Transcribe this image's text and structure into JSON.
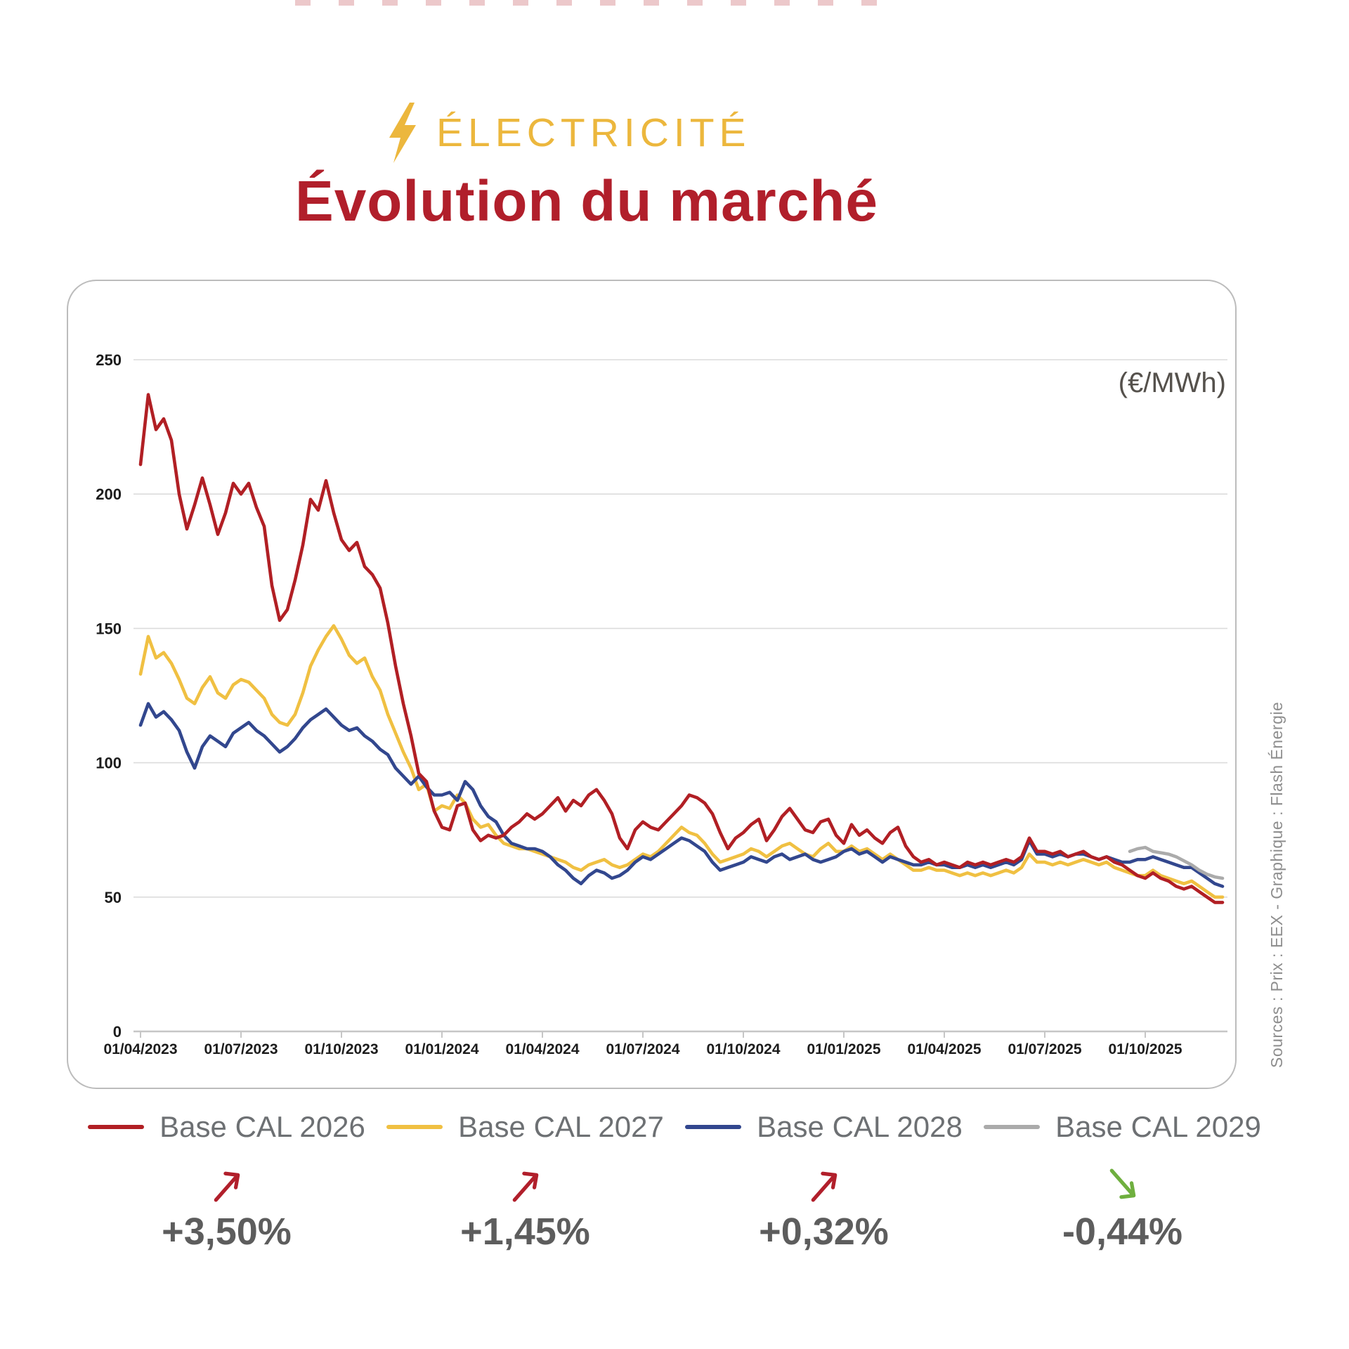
{
  "header": {
    "kicker": "ÉLECTRICITÉ",
    "kicker_icon": "lightning-bolt-icon",
    "title": "Évolution du marché",
    "kicker_color": "#ecb73d",
    "title_color": "#b11f2b"
  },
  "chart": {
    "unit_label": "(€/MWh)",
    "source_note": "Sources : Prix : EEX - Graphique : Flash Énergie",
    "grid_color": "#dcdcdc",
    "axis_color": "#c6c6c6",
    "tick_text_color": "#1c1c1c"
  },
  "chart_data": {
    "type": "line",
    "title": "Évolution du marché",
    "ylabel": "(€/MWh)",
    "ylim": [
      0,
      250
    ],
    "y_ticks": [
      0,
      50,
      100,
      150,
      200,
      250
    ],
    "x_tick_labels": [
      "01/04/2023",
      "01/07/2023",
      "01/10/2023",
      "01/01/2024",
      "01/04/2024",
      "01/07/2024",
      "01/10/2024",
      "01/01/2025",
      "01/04/2025",
      "01/07/2025",
      "01/10/2025"
    ],
    "x_start": "01/04/2023",
    "x_step_days": 7,
    "weeks_per_tick": 13,
    "grid": true,
    "legend_position": "bottom",
    "series": [
      {
        "name": "Base CAL 2026",
        "color": "#b11f24",
        "start_index": 0,
        "values": [
          211,
          237,
          224,
          228,
          220,
          200,
          187,
          196,
          206,
          196,
          185,
          193,
          204,
          200,
          204,
          195,
          188,
          166,
          153,
          157,
          168,
          181,
          198,
          194,
          205,
          193,
          183,
          179,
          182,
          173,
          170,
          165,
          152,
          136,
          122,
          110,
          96,
          93,
          82,
          76,
          75,
          84,
          85,
          75,
          71,
          73,
          72,
          73,
          76,
          78,
          81,
          79,
          81,
          84,
          87,
          82,
          86,
          84,
          88,
          90,
          86,
          81,
          72,
          68,
          75,
          78,
          76,
          75,
          78,
          81,
          84,
          88,
          87,
          85,
          81,
          74,
          68,
          72,
          74,
          77,
          79,
          71,
          75,
          80,
          83,
          79,
          75,
          74,
          78,
          79,
          73,
          70,
          77,
          73,
          75,
          72,
          70,
          74,
          76,
          69,
          65,
          63,
          64,
          62,
          63,
          62,
          61,
          63,
          62,
          63,
          62,
          63,
          64,
          63,
          65,
          72,
          67,
          67,
          66,
          67,
          65,
          66,
          67,
          65,
          64,
          65,
          63,
          62,
          60,
          58,
          57,
          59,
          57,
          56,
          54,
          53,
          54,
          52,
          50,
          48,
          48
        ]
      },
      {
        "name": "Base CAL 2027",
        "color": "#f0c042",
        "start_index": 0,
        "values": [
          133,
          147,
          139,
          141,
          137,
          131,
          124,
          122,
          128,
          132,
          126,
          124,
          129,
          131,
          130,
          127,
          124,
          118,
          115,
          114,
          118,
          126,
          136,
          142,
          147,
          151,
          146,
          140,
          137,
          139,
          132,
          127,
          118,
          111,
          104,
          98,
          90,
          92,
          82,
          84,
          83,
          88,
          85,
          79,
          76,
          77,
          73,
          70,
          69,
          68,
          68,
          67,
          66,
          65,
          64,
          63,
          61,
          60,
          62,
          63,
          64,
          62,
          61,
          62,
          64,
          66,
          65,
          67,
          70,
          73,
          76,
          74,
          73,
          70,
          66,
          63,
          64,
          65,
          66,
          68,
          67,
          65,
          67,
          69,
          70,
          68,
          66,
          65,
          68,
          70,
          67,
          67,
          69,
          67,
          68,
          66,
          64,
          66,
          64,
          62,
          60,
          60,
          61,
          60,
          60,
          59,
          58,
          59,
          58,
          59,
          58,
          59,
          60,
          59,
          61,
          66,
          63,
          63,
          62,
          63,
          62,
          63,
          64,
          63,
          62,
          63,
          61,
          60,
          59,
          58,
          58,
          60,
          58,
          57,
          56,
          55,
          56,
          54,
          52,
          50,
          50
        ]
      },
      {
        "name": "Base CAL 2028",
        "color": "#32478e",
        "start_index": 0,
        "values": [
          114,
          122,
          117,
          119,
          116,
          112,
          104,
          98,
          106,
          110,
          108,
          106,
          111,
          113,
          115,
          112,
          110,
          107,
          104,
          106,
          109,
          113,
          116,
          118,
          120,
          117,
          114,
          112,
          113,
          110,
          108,
          105,
          103,
          98,
          95,
          92,
          95,
          91,
          88,
          88,
          89,
          86,
          93,
          90,
          84,
          80,
          78,
          73,
          70,
          69,
          68,
          68,
          67,
          65,
          62,
          60,
          57,
          55,
          58,
          60,
          59,
          57,
          58,
          60,
          63,
          65,
          64,
          66,
          68,
          70,
          72,
          71,
          69,
          67,
          63,
          60,
          61,
          62,
          63,
          65,
          64,
          63,
          65,
          66,
          64,
          65,
          66,
          64,
          63,
          64,
          65,
          67,
          68,
          66,
          67,
          65,
          63,
          65,
          64,
          63,
          62,
          62,
          63,
          62,
          62,
          61,
          61,
          62,
          61,
          62,
          61,
          62,
          63,
          62,
          64,
          71,
          66,
          66,
          65,
          66,
          65,
          66,
          66,
          65,
          64,
          65,
          64,
          63,
          63,
          64,
          64,
          65,
          64,
          63,
          62,
          61,
          61,
          59,
          57,
          55,
          54
        ]
      },
      {
        "name": "Base CAL 2029",
        "color": "#ababab",
        "start_index": 128,
        "values": [
          67,
          68,
          68.5,
          67,
          66.5,
          66,
          65,
          63.5,
          62,
          60,
          58.5,
          57.5,
          57
        ]
      }
    ]
  },
  "legend": {
    "items": [
      {
        "label": "Base CAL 2026",
        "color": "#b11f24",
        "delta": "+3,50%",
        "trend": "up",
        "arrow_color": "#b11f2b"
      },
      {
        "label": "Base CAL 2027",
        "color": "#f0c042",
        "delta": "+1,45%",
        "trend": "up",
        "arrow_color": "#b11f2b"
      },
      {
        "label": "Base CAL 2028",
        "color": "#32478e",
        "delta": "+0,32%",
        "trend": "up",
        "arrow_color": "#b11f2b"
      },
      {
        "label": "Base CAL 2029",
        "color": "#ababab",
        "delta": "-0,44%",
        "trend": "down",
        "arrow_color": "#6faf3f"
      }
    ]
  }
}
